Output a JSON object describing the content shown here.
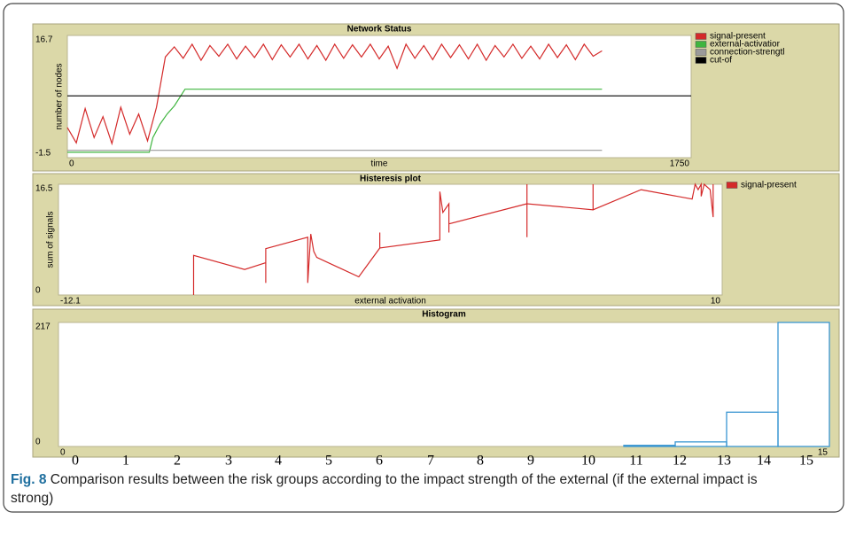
{
  "chart_data": [
    {
      "type": "line",
      "title": "Network Status",
      "xlabel": "time",
      "ylabel": "number of nodes",
      "xlim": [
        0,
        1750
      ],
      "ylim": [
        -1.5,
        16.7
      ],
      "xticks": [
        0,
        1750
      ],
      "yticks": [
        -1.5,
        16.7
      ],
      "series": [
        {
          "name": "signal-present",
          "color": "#d42a2a",
          "x": [
            0,
            25,
            50,
            75,
            100,
            125,
            150,
            175,
            200,
            225,
            250,
            275,
            300,
            325,
            350,
            375,
            400,
            425,
            450,
            475,
            500,
            525,
            550,
            575,
            600,
            625,
            650,
            675,
            700,
            725,
            750,
            775,
            800,
            825,
            850,
            875,
            900,
            925,
            950,
            975,
            1000,
            1025,
            1050,
            1075,
            1100,
            1125,
            1150,
            1175,
            1200,
            1225,
            1250,
            1275,
            1300,
            1325,
            1350,
            1375,
            1400,
            1425,
            1450,
            1475,
            1500
          ],
          "values": [
            3.0,
            0.7,
            5.8,
            1.5,
            4.6,
            0.6,
            6.0,
            2.0,
            5.0,
            1.0,
            6.0,
            13.5,
            15.0,
            13.3,
            15.4,
            13.0,
            15.2,
            13.6,
            15.4,
            13.2,
            15.1,
            13.4,
            15.4,
            13.1,
            15.3,
            13.5,
            15.4,
            13.2,
            15.2,
            13.0,
            15.4,
            13.3,
            15.3,
            13.5,
            15.4,
            13.2,
            15.1,
            11.8,
            15.4,
            13.3,
            15.2,
            13.1,
            15.4,
            13.4,
            15.3,
            13.2,
            15.4,
            13.0,
            15.2,
            13.5,
            15.4,
            13.3,
            15.1,
            13.2,
            15.4,
            13.4,
            15.3,
            13.1,
            15.4,
            13.6,
            14.4
          ]
        },
        {
          "name": "external-activatior",
          "color": "#3fb53f",
          "x": [
            0,
            230,
            240,
            260,
            280,
            300,
            330,
            1500
          ],
          "values": [
            -0.7,
            -0.7,
            1.5,
            3.5,
            5.0,
            6.2,
            8.7,
            8.7
          ]
        },
        {
          "name": "connection-strengtl",
          "color": "#9a9a9a",
          "x": [
            0,
            1500
          ],
          "values": [
            -0.4,
            -0.4
          ]
        },
        {
          "name": "cut-of",
          "color": "#000000",
          "x": [
            0,
            1750
          ],
          "values": [
            7.7,
            7.7
          ]
        }
      ]
    },
    {
      "type": "line",
      "title": "Histeresis plot",
      "xlabel": "external activation",
      "ylabel": "sum of signals",
      "xlim": [
        -12.1,
        10
      ],
      "ylim": [
        0,
        16.5
      ],
      "xticks": [
        -12.1,
        10
      ],
      "yticks": [
        0,
        16.5
      ],
      "series": [
        {
          "name": "signal-present",
          "color": "#d42a2a",
          "x": [
            -7.6,
            -7.6,
            -5.9,
            -5.2,
            -5.2,
            -5.2,
            -3.8,
            -3.8,
            -3.7,
            -3.6,
            -3.5,
            -2.1,
            -1.4,
            -1.4,
            -1.4,
            0.6,
            0.6,
            0.7,
            0.9,
            0.9,
            0.9,
            3.5,
            3.5,
            3.5,
            3.5,
            5.7,
            5.7,
            5.7,
            7.3,
            9.0,
            9.1,
            9.2,
            9.3,
            9.3,
            9.4,
            9.6,
            9.7,
            9.7
          ],
          "values": [
            0,
            5.9,
            3.8,
            4.8,
            1.8,
            6.9,
            8.6,
            1.8,
            9.1,
            6.5,
            5.6,
            2.7,
            7.0,
            9.3,
            7.0,
            8.2,
            15.4,
            12.3,
            13.6,
            9.3,
            10.6,
            13.6,
            16.5,
            8.6,
            13.6,
            12.7,
            16.5,
            12.7,
            15.7,
            14.3,
            16.5,
            15.7,
            16.5,
            14.7,
            16.5,
            15.7,
            11.6,
            16.5
          ]
        }
      ]
    },
    {
      "type": "histogram",
      "title": "Histogram",
      "color": "#3a96d2",
      "bins": [
        0,
        1,
        2,
        3,
        4,
        5,
        6,
        7,
        8,
        9,
        10,
        11,
        12,
        13,
        14,
        15
      ],
      "counts": [
        0,
        0,
        0,
        0,
        0,
        0,
        0,
        0,
        0,
        0,
        0,
        2,
        8,
        60,
        217
      ],
      "xlim": [
        0,
        15
      ],
      "ylim": [
        0,
        217
      ],
      "xticks": [
        0,
        15
      ],
      "yticks": [
        0,
        217
      ]
    }
  ],
  "scale_labels": [
    0,
    1,
    2,
    3,
    4,
    5,
    6,
    7,
    8,
    9,
    10,
    11,
    12,
    13,
    14,
    15
  ],
  "caption": {
    "label": "Fig. 8",
    "text": "Comparison results between the risk groups according to the impact strength of the external (if the external impact is strong)"
  }
}
